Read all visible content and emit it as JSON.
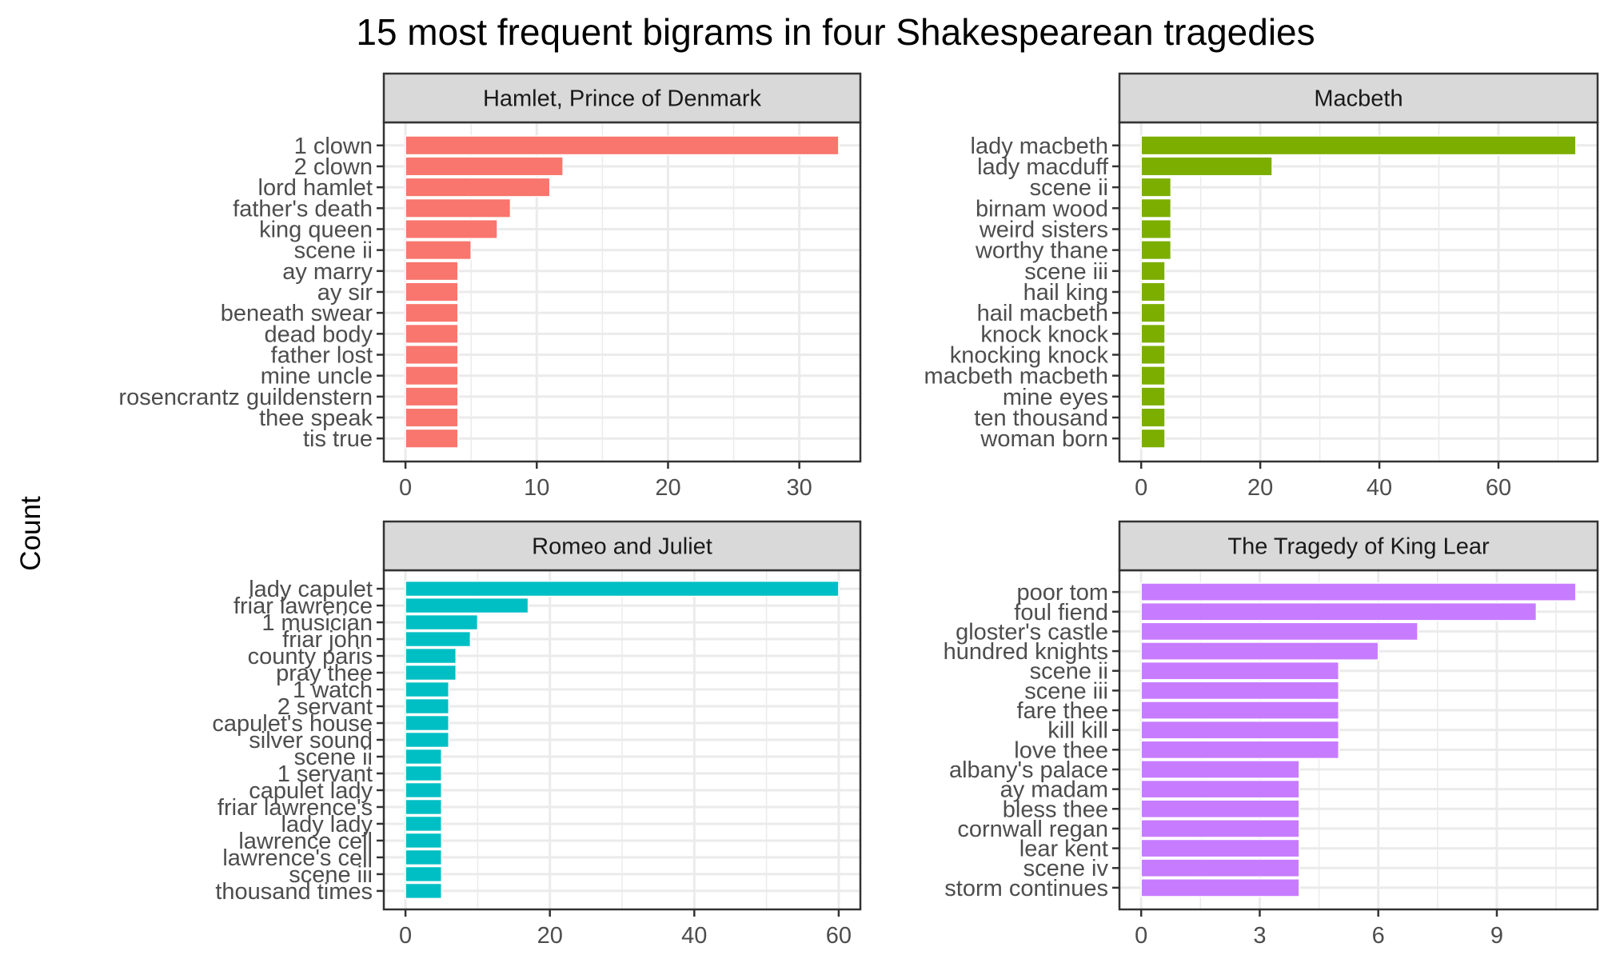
{
  "title": "15 most frequent bigrams in four Shakespearean tragedies",
  "ylabel": "Count",
  "colors": {
    "hamlet": "#F8766D",
    "macbeth": "#7CAE00",
    "romeo": "#00BFC4",
    "lear": "#C77CFF",
    "strip": "#D9D9D9",
    "grid": "#EBEBEB",
    "border": "#333333",
    "axis_text": "#4D4D4D"
  },
  "chart_data": [
    {
      "type": "bar",
      "orientation": "horizontal",
      "title": "Hamlet, Prince of Denmark",
      "color": "#F8766D",
      "categories": [
        "1 clown",
        "2 clown",
        "lord hamlet",
        "father's death",
        "king queen",
        "scene ii",
        "ay marry",
        "ay sir",
        "beneath swear",
        "dead body",
        "father lost",
        "mine uncle",
        "rosencrantz guildenstern",
        "thee speak",
        "tis true"
      ],
      "values": [
        33,
        12,
        11,
        8,
        7,
        5,
        4,
        4,
        4,
        4,
        4,
        4,
        4,
        4,
        4
      ],
      "xlim": [
        -1.65,
        34.65
      ],
      "xticks": [
        0,
        10,
        20,
        30
      ],
      "grid": true
    },
    {
      "type": "bar",
      "orientation": "horizontal",
      "title": "Macbeth",
      "color": "#7CAE00",
      "categories": [
        "lady macbeth",
        "lady macduff",
        "scene ii",
        "birnam wood",
        "weird sisters",
        "worthy thane",
        "scene iii",
        "hail king",
        "hail macbeth",
        "knock knock",
        "knocking knock",
        "macbeth macbeth",
        "mine eyes",
        "ten thousand",
        "woman born"
      ],
      "values": [
        73,
        22,
        5,
        5,
        5,
        5,
        4,
        4,
        4,
        4,
        4,
        4,
        4,
        4,
        4
      ],
      "xlim": [
        -3.65,
        76.65
      ],
      "xticks": [
        0,
        20,
        40,
        60
      ],
      "grid": true
    },
    {
      "type": "bar",
      "orientation": "horizontal",
      "title": "Romeo and Juliet",
      "color": "#00BFC4",
      "categories": [
        "lady capulet",
        "friar lawrence",
        "1 musician",
        "friar john",
        "county paris",
        "pray thee",
        "1 watch",
        "2 servant",
        "capulet's house",
        "silver sound",
        "scene ii",
        "1 servant",
        "capulet lady",
        "friar lawrence's",
        "lady lady",
        "lawrence cell",
        "lawrence's cell",
        "scene iii",
        "thousand times"
      ],
      "values": [
        60,
        17,
        10,
        9,
        7,
        7,
        6,
        6,
        6,
        6,
        5,
        5,
        5,
        5,
        5,
        5,
        5,
        5,
        5
      ],
      "xlim": [
        -3,
        63
      ],
      "xticks": [
        0,
        20,
        40,
        60
      ],
      "grid": true
    },
    {
      "type": "bar",
      "orientation": "horizontal",
      "title": "The Tragedy of King Lear",
      "color": "#C77CFF",
      "categories": [
        "poor tom",
        "foul fiend",
        "gloster's castle",
        "hundred knights",
        "scene ii",
        "scene iii",
        "fare thee",
        "kill kill",
        "love thee",
        "albany's palace",
        "ay madam",
        "bless thee",
        "cornwall regan",
        "lear kent",
        "scene iv",
        "storm continues"
      ],
      "values": [
        11,
        10,
        7,
        6,
        5,
        5,
        5,
        5,
        5,
        4,
        4,
        4,
        4,
        4,
        4,
        4
      ],
      "xlim": [
        -0.55,
        11.55
      ],
      "xticks": [
        0,
        3,
        6,
        9
      ],
      "grid": true
    }
  ]
}
